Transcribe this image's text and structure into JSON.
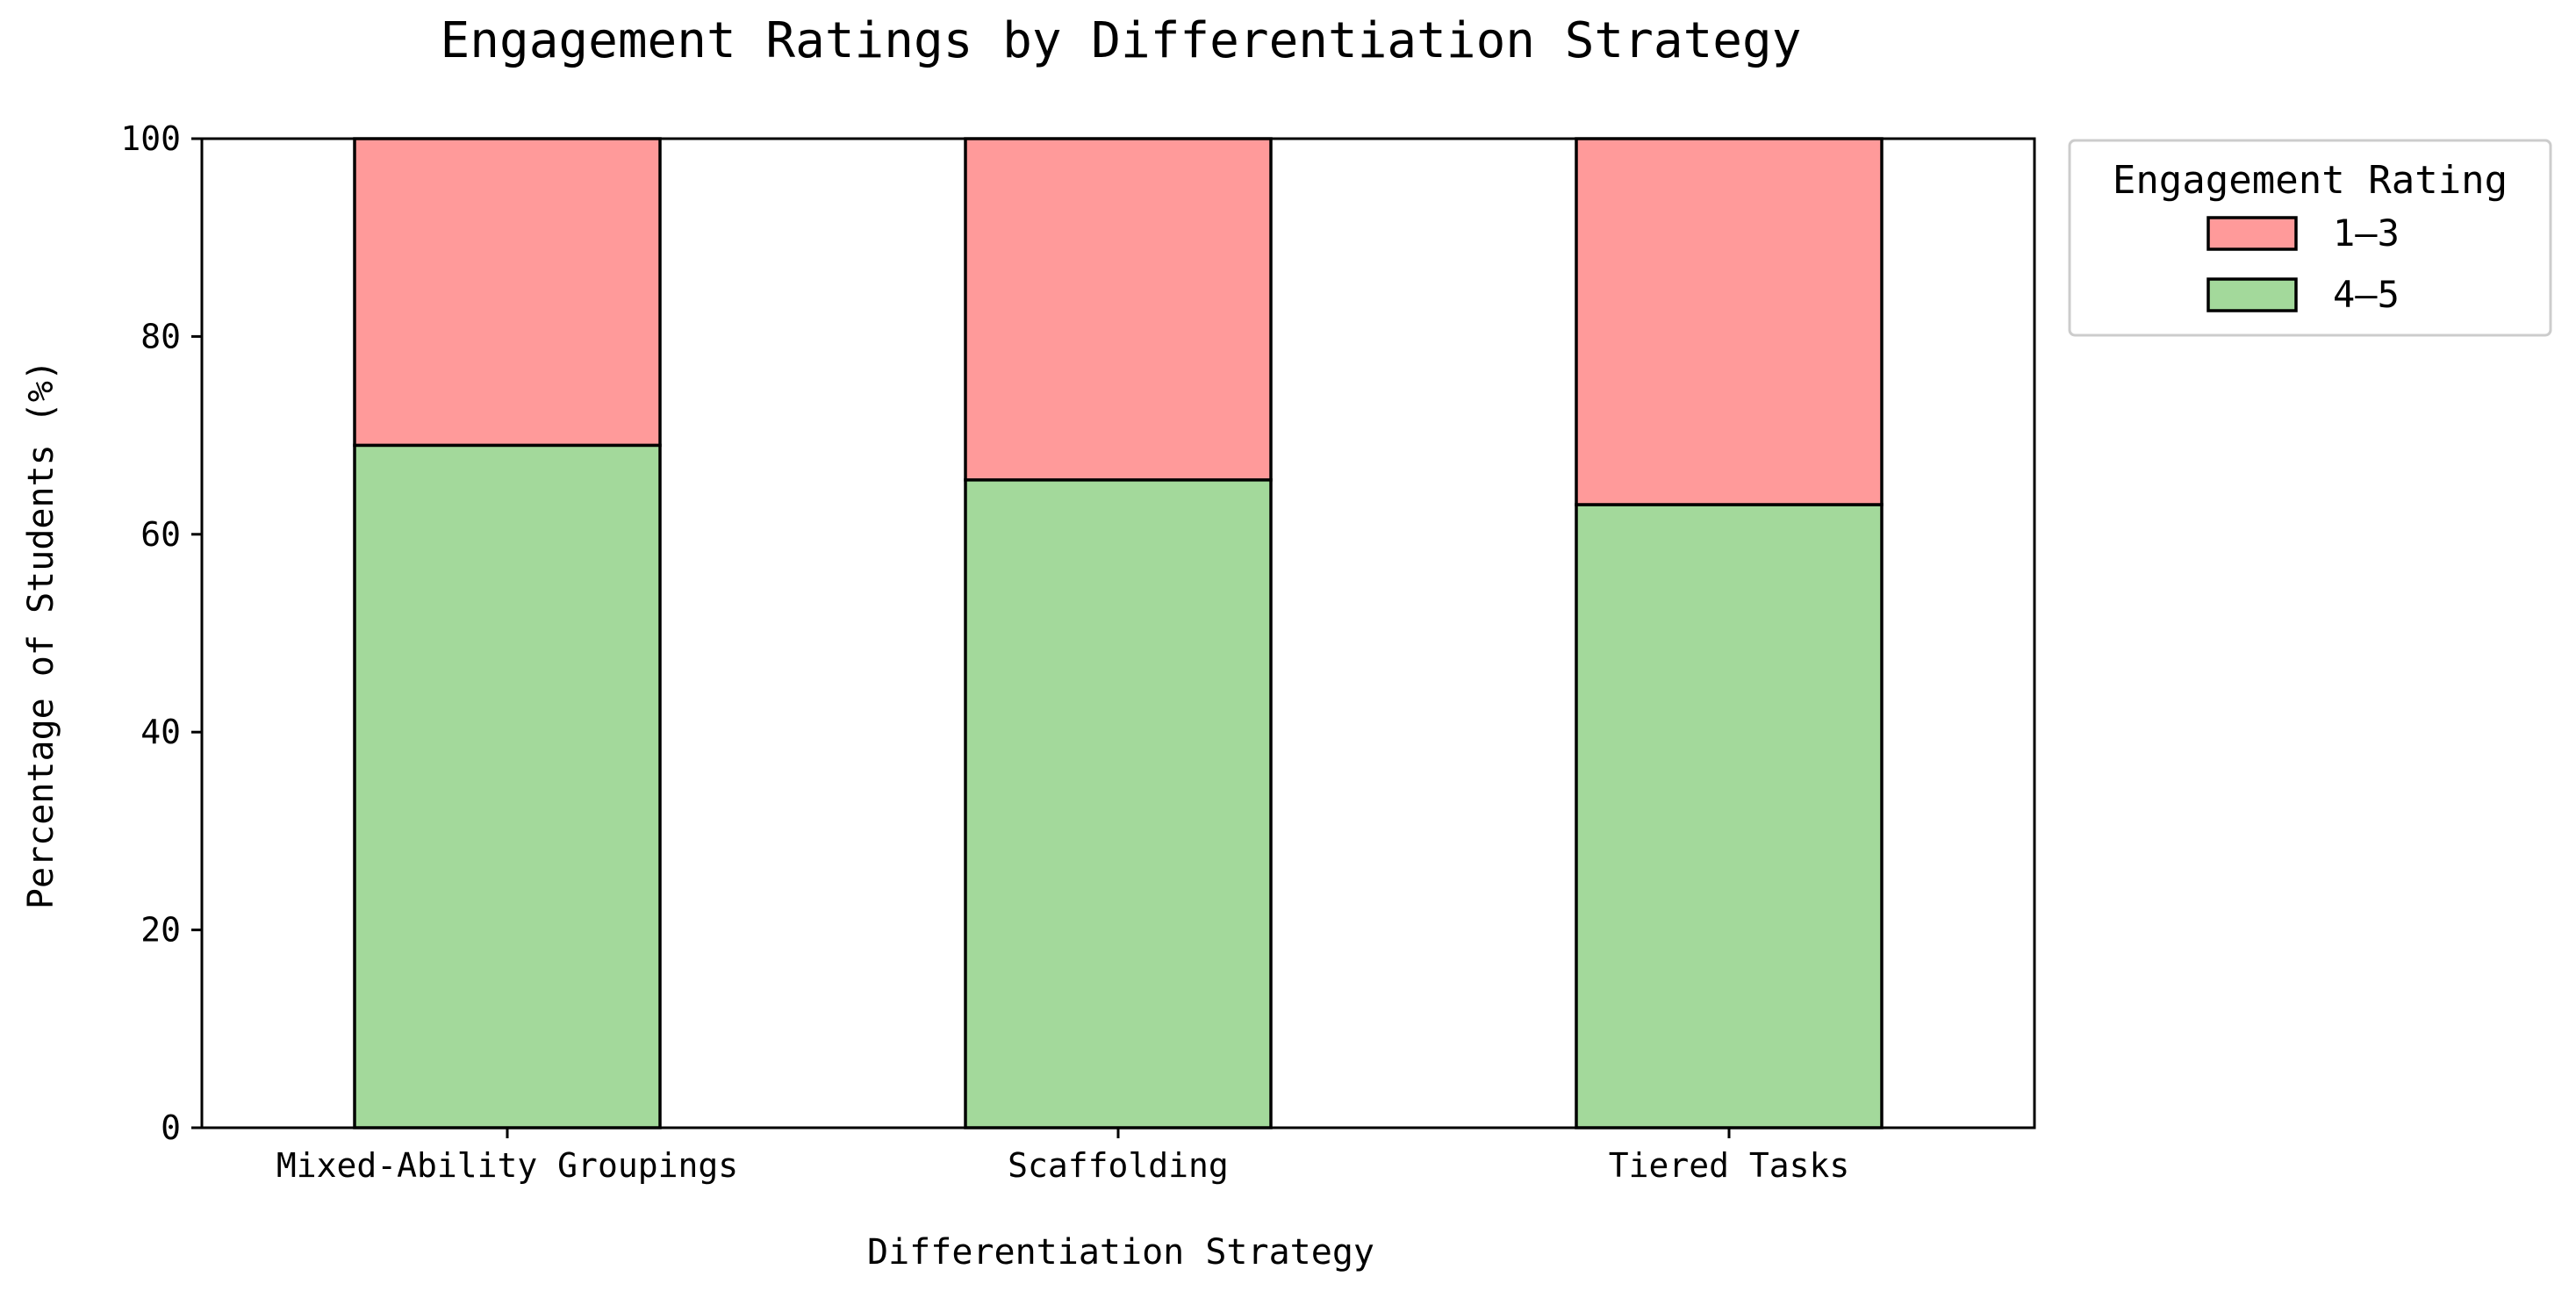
{
  "chart_data": {
    "type": "bar",
    "stacked": true,
    "title": "Engagement Ratings by Differentiation Strategy",
    "xlabel": "Differentiation Strategy",
    "ylabel": "Percentage of Students (%)",
    "categories": [
      "Mixed-Ability Groupings",
      "Scaffolding",
      "Tiered Tasks"
    ],
    "ylim": [
      0,
      100
    ],
    "yticks": [
      0,
      20,
      40,
      60,
      80,
      100
    ],
    "grid": false,
    "legend": {
      "title": "Engagement Rating",
      "placement": "outside-top-right",
      "order": [
        "1-3",
        "4-5"
      ]
    },
    "series": [
      {
        "name": "4–5",
        "values": [
          69.0,
          65.5,
          63.0
        ],
        "color": "#a3d99b"
      },
      {
        "name": "1–3",
        "values": [
          31.0,
          34.5,
          37.0
        ],
        "color": "#ff9a9a"
      }
    ]
  }
}
